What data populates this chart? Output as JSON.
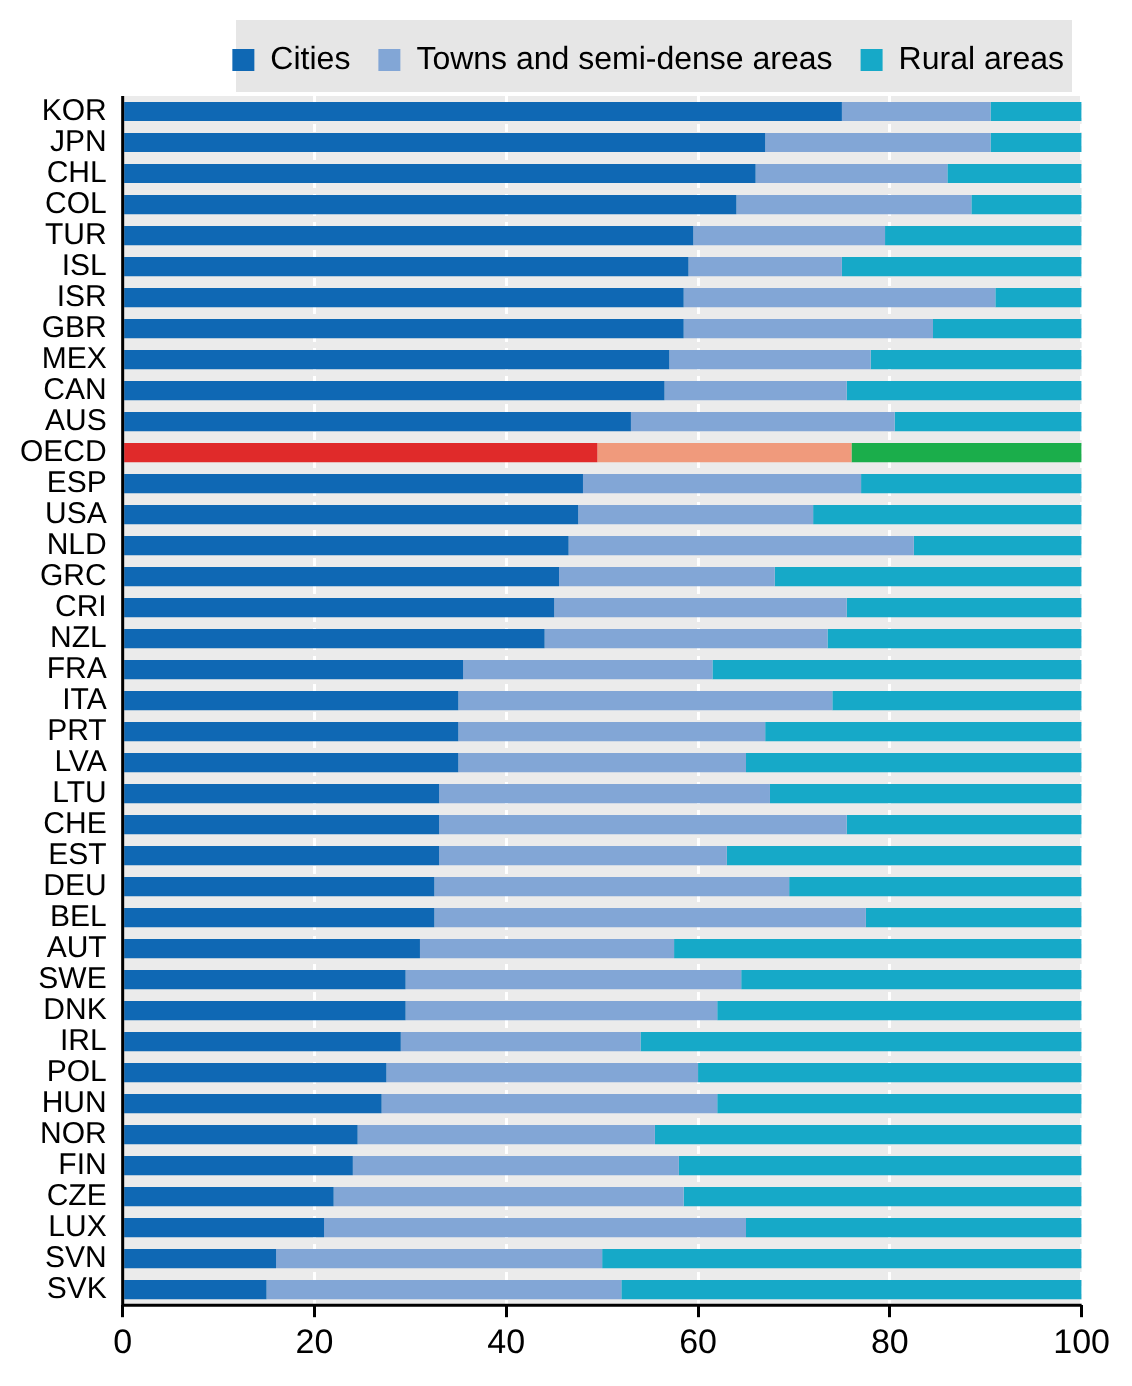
{
  "chart_data": {
    "type": "bar",
    "orientation": "horizontal",
    "stacked": true,
    "legend": "top",
    "grid": "x",
    "categories": [
      "KOR",
      "JPN",
      "CHL",
      "COL",
      "TUR",
      "ISL",
      "ISR",
      "GBR",
      "MEX",
      "CAN",
      "AUS",
      "OECD",
      "ESP",
      "USA",
      "NLD",
      "GRC",
      "CRI",
      "NZL",
      "FRA",
      "ITA",
      "PRT",
      "LVA",
      "LTU",
      "CHE",
      "EST",
      "DEU",
      "BEL",
      "AUT",
      "SWE",
      "DNK",
      "IRL",
      "POL",
      "HUN",
      "NOR",
      "FIN",
      "CZE",
      "LUX",
      "SVN",
      "SVK"
    ],
    "xlim": [
      0,
      100
    ],
    "xticks": [
      0,
      20,
      40,
      60,
      80,
      100
    ],
    "series": [
      {
        "name": "Cities",
        "color": "#0f68b4",
        "colors": [
          "#0f68b4",
          "#0f68b4",
          "#0f68b4",
          "#0f68b4",
          "#0f68b4",
          "#0f68b4",
          "#0f68b4",
          "#0f68b4",
          "#0f68b4",
          "#0f68b4",
          "#0f68b4",
          "#e02a2a",
          "#0f68b4",
          "#0f68b4",
          "#0f68b4",
          "#0f68b4",
          "#0f68b4",
          "#0f68b4",
          "#0f68b4",
          "#0f68b4",
          "#0f68b4",
          "#0f68b4",
          "#0f68b4",
          "#0f68b4",
          "#0f68b4",
          "#0f68b4",
          "#0f68b4",
          "#0f68b4",
          "#0f68b4",
          "#0f68b4",
          "#0f68b4",
          "#0f68b4",
          "#0f68b4",
          "#0f68b4",
          "#0f68b4",
          "#0f68b4",
          "#0f68b4",
          "#0f68b4",
          "#0f68b4"
        ],
        "values": [
          75,
          67,
          66,
          64,
          59.5,
          59,
          58.5,
          58.5,
          57,
          56.5,
          53,
          49.5,
          48,
          47.5,
          46.5,
          45.5,
          45,
          44,
          35.5,
          35,
          35,
          35,
          33,
          33,
          33,
          32.5,
          32.5,
          31,
          29.5,
          29.5,
          29,
          27.5,
          27,
          24.5,
          24,
          22,
          21,
          16,
          15
        ]
      },
      {
        "name": "Towns and semi-dense areas",
        "color": "#82a6d6",
        "colors": [
          "#82a6d6",
          "#82a6d6",
          "#82a6d6",
          "#82a6d6",
          "#82a6d6",
          "#82a6d6",
          "#82a6d6",
          "#82a6d6",
          "#82a6d6",
          "#82a6d6",
          "#82a6d6",
          "#f09a7c",
          "#82a6d6",
          "#82a6d6",
          "#82a6d6",
          "#82a6d6",
          "#82a6d6",
          "#82a6d6",
          "#82a6d6",
          "#82a6d6",
          "#82a6d6",
          "#82a6d6",
          "#82a6d6",
          "#82a6d6",
          "#82a6d6",
          "#82a6d6",
          "#82a6d6",
          "#82a6d6",
          "#82a6d6",
          "#82a6d6",
          "#82a6d6",
          "#82a6d6",
          "#82a6d6",
          "#82a6d6",
          "#82a6d6",
          "#82a6d6",
          "#82a6d6",
          "#82a6d6",
          "#82a6d6"
        ],
        "values": [
          15.5,
          23.5,
          20,
          24.5,
          20,
          16,
          32.5,
          26,
          21,
          19,
          27.5,
          26.5,
          29,
          24.5,
          36,
          22.5,
          30.5,
          29.5,
          26,
          39,
          32,
          30,
          34.5,
          42.5,
          30,
          37,
          45,
          26.5,
          35,
          32.5,
          25,
          32.5,
          35,
          31,
          34,
          36.5,
          44,
          34,
          37
        ]
      },
      {
        "name": "Rural areas",
        "color": "#16a9c8",
        "colors": [
          "#16a9c8",
          "#16a9c8",
          "#16a9c8",
          "#16a9c8",
          "#16a9c8",
          "#16a9c8",
          "#16a9c8",
          "#16a9c8",
          "#16a9c8",
          "#16a9c8",
          "#16a9c8",
          "#1bae4b",
          "#16a9c8",
          "#16a9c8",
          "#16a9c8",
          "#16a9c8",
          "#16a9c8",
          "#16a9c8",
          "#16a9c8",
          "#16a9c8",
          "#16a9c8",
          "#16a9c8",
          "#16a9c8",
          "#16a9c8",
          "#16a9c8",
          "#16a9c8",
          "#16a9c8",
          "#16a9c8",
          "#16a9c8",
          "#16a9c8",
          "#16a9c8",
          "#16a9c8",
          "#16a9c8",
          "#16a9c8",
          "#16a9c8",
          "#16a9c8",
          "#16a9c8",
          "#16a9c8",
          "#16a9c8"
        ],
        "values": [
          9.5,
          9.5,
          14,
          11.5,
          20.5,
          25,
          9,
          15.5,
          22,
          24.5,
          19.5,
          24,
          23,
          28,
          17.5,
          32,
          24.5,
          26.5,
          38.5,
          26,
          33,
          35,
          32.5,
          24.5,
          37,
          30.5,
          22.5,
          42.5,
          35.5,
          38,
          46,
          40,
          38,
          44.5,
          42,
          41.5,
          35,
          50,
          48
        ]
      }
    ]
  }
}
